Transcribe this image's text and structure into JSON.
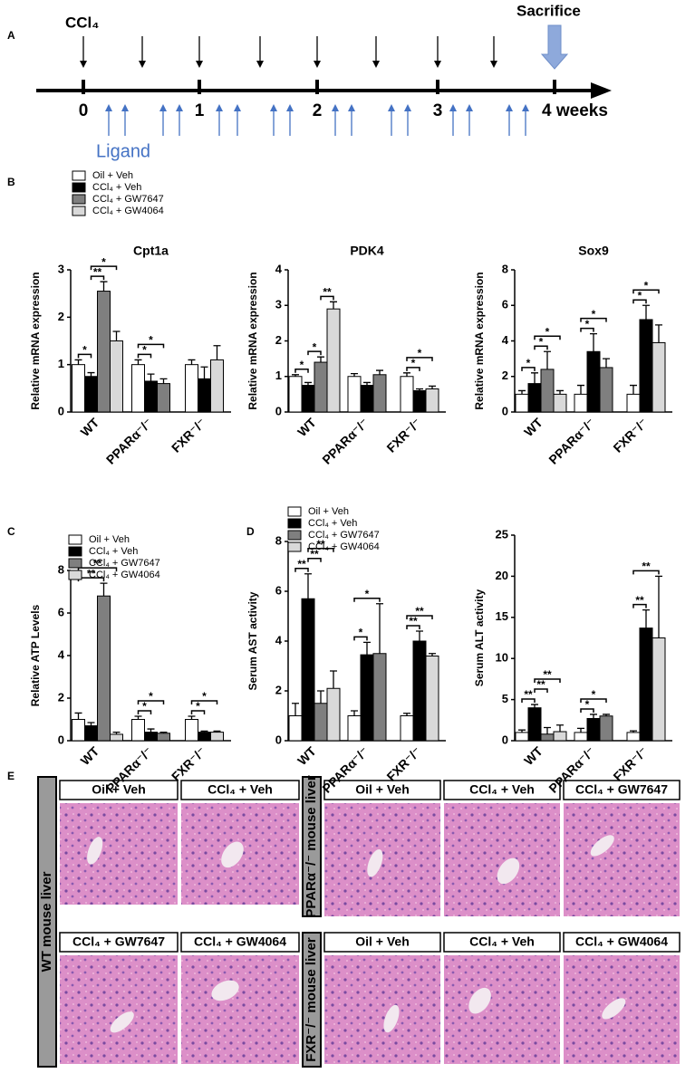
{
  "panel_labels": [
    "A",
    "B",
    "C",
    "D",
    "E"
  ],
  "timeline": {
    "start_label": "CCl₄",
    "end_label": "Sacrifice",
    "ticks": [
      "0",
      "1",
      "2",
      "3",
      "4 weeks"
    ],
    "ligand_label": "Ligand"
  },
  "histology": {
    "groups": [
      {
        "label": "WT mouse liver",
        "panels": [
          "Oil + Veh",
          "CCl₄ + Veh",
          "CCl₄ + GW7647",
          "CCl₄ + GW4064"
        ]
      },
      {
        "label": "PPARα⁻/⁻ mouse liver",
        "panels": [
          "Oil + Veh",
          "CCl₄ + Veh",
          "CCl₄ + GW7647"
        ]
      },
      {
        "label": "FXR⁻/⁻ mouse liver",
        "panels": [
          "Oil + Veh",
          "CCl₄ + Veh",
          "CCl₄ + GW4064"
        ]
      }
    ]
  },
  "chart_data": [
    {
      "type": "bar",
      "title": "Cpt1a",
      "y_label": "Relative mRNA expression",
      "categories": [
        "WT",
        "PPARα⁻/⁻",
        "FXR⁻/⁻"
      ],
      "series": [
        {
          "name": "Oil + Veh",
          "color": "#ffffff",
          "values": [
            1.0,
            1.0,
            1.0
          ],
          "errors": [
            0.1,
            0.1,
            0.1
          ]
        },
        {
          "name": "CCl₄ + Veh",
          "color": "#000000",
          "values": [
            0.75,
            0.65,
            0.7
          ],
          "errors": [
            0.08,
            0.15,
            0.25
          ]
        },
        {
          "name": "CCl₄ + GW7647",
          "color": "#7f7f7f",
          "values": [
            2.55,
            0.6,
            null
          ],
          "errors": [
            0.2,
            0.1,
            null
          ]
        },
        {
          "name": "CCl₄ + GW4064",
          "color": "#d9d9d9",
          "values": [
            1.5,
            null,
            1.1
          ],
          "errors": [
            0.2,
            null,
            0.3
          ]
        }
      ],
      "ylim": [
        0,
        3
      ],
      "yticks": [
        0,
        1,
        2,
        3
      ],
      "annotations": [
        "*",
        "**",
        "*",
        "*",
        "*"
      ]
    },
    {
      "type": "bar",
      "title": "PDK4",
      "y_label": "Relative mRNA expression",
      "categories": [
        "WT",
        "PPARα⁻/⁻",
        "FXR⁻/⁻"
      ],
      "series": [
        {
          "color": "#ffffff",
          "values": [
            1.0,
            1.0,
            1.0
          ],
          "errors": [
            0.05,
            0.08,
            0.1
          ]
        },
        {
          "color": "#000000",
          "values": [
            0.75,
            0.75,
            0.6
          ],
          "errors": [
            0.08,
            0.08,
            0.05
          ]
        },
        {
          "color": "#7f7f7f",
          "values": [
            1.4,
            1.05,
            null
          ],
          "errors": [
            0.15,
            0.12,
            null
          ]
        },
        {
          "color": "#d9d9d9",
          "values": [
            2.9,
            null,
            0.65
          ],
          "errors": [
            0.2,
            null,
            0.08
          ]
        }
      ],
      "ylim": [
        0,
        4
      ],
      "yticks": [
        0,
        1,
        2,
        3,
        4
      ],
      "annotations": [
        "*",
        "*",
        "**",
        "*",
        "*"
      ]
    },
    {
      "type": "bar",
      "title": "Sox9",
      "y_label": "Relative mRNA expression",
      "categories": [
        "WT",
        "PPARα⁻/⁻",
        "FXR⁻/⁻"
      ],
      "series": [
        {
          "color": "#ffffff",
          "values": [
            1.0,
            1.0,
            1.0
          ],
          "errors": [
            0.2,
            0.5,
            0.5
          ]
        },
        {
          "color": "#000000",
          "values": [
            1.6,
            3.4,
            5.2
          ],
          "errors": [
            0.6,
            1.0,
            0.8
          ]
        },
        {
          "color": "#7f7f7f",
          "values": [
            2.4,
            2.5,
            null
          ],
          "errors": [
            1.0,
            0.5,
            null
          ]
        },
        {
          "color": "#d9d9d9",
          "values": [
            1.0,
            null,
            3.9
          ],
          "errors": [
            0.2,
            null,
            1.0
          ]
        }
      ],
      "ylim": [
        0,
        8
      ],
      "yticks": [
        0,
        2,
        4,
        6,
        8
      ],
      "annotations": [
        "*",
        "*",
        "*",
        "*",
        "*",
        "*",
        "*"
      ]
    },
    {
      "type": "bar",
      "y_label": "Relative ATP Levels",
      "categories": [
        "WT",
        "PPARα⁻/⁻",
        "FXR⁻/⁻"
      ],
      "series": [
        {
          "name": "Oil + Veh",
          "color": "#ffffff",
          "values": [
            1.0,
            1.0,
            1.0
          ],
          "errors": [
            0.3,
            0.15,
            0.15
          ]
        },
        {
          "name": "CCl₄ + Veh",
          "color": "#000000",
          "values": [
            0.7,
            0.4,
            0.4
          ],
          "errors": [
            0.15,
            0.15,
            0.05
          ]
        },
        {
          "name": "CCl₄ + GW7647",
          "color": "#7f7f7f",
          "values": [
            6.8,
            0.35,
            null
          ],
          "errors": [
            0.6,
            0.05,
            null
          ]
        },
        {
          "name": "CCl₄ + GW4064",
          "color": "#d9d9d9",
          "values": [
            0.3,
            null,
            0.4
          ],
          "errors": [
            0.1,
            null,
            0.05
          ]
        }
      ],
      "ylim": [
        0,
        8
      ],
      "yticks": [
        0,
        2,
        4,
        6,
        8
      ],
      "annotations": [
        "**",
        "**",
        "*",
        "*",
        "*",
        "*"
      ]
    },
    {
      "type": "bar",
      "y_label": "Serum AST activity",
      "categories": [
        "WT",
        "PPARα⁻/⁻",
        "FXR⁻/⁻"
      ],
      "series": [
        {
          "name": "Oil + Veh",
          "color": "#ffffff",
          "values": [
            1.0,
            1.0,
            1.0
          ],
          "errors": [
            0.5,
            0.2,
            0.1
          ]
        },
        {
          "name": "CCl₄ + Veh",
          "color": "#000000",
          "values": [
            5.7,
            3.45,
            4.0
          ],
          "errors": [
            1.0,
            0.5,
            0.4
          ]
        },
        {
          "name": "CCl₄ + GW7647",
          "color": "#7f7f7f",
          "values": [
            1.5,
            3.5,
            null
          ],
          "errors": [
            0.5,
            2.0,
            null
          ]
        },
        {
          "name": "CCl₄ + GW4064",
          "color": "#d9d9d9",
          "values": [
            2.1,
            null,
            3.4
          ],
          "errors": [
            0.7,
            null,
            0.1
          ]
        }
      ],
      "ylim": [
        0,
        8
      ],
      "yticks": [
        0,
        2,
        4,
        6,
        8
      ],
      "annotations": [
        "**",
        "**",
        "**",
        "*",
        "*",
        "**",
        "**"
      ]
    },
    {
      "type": "bar",
      "y_label": "Serum ALT activity",
      "categories": [
        "WT",
        "PPARα⁻/⁻",
        "FXR⁻/⁻"
      ],
      "series": [
        {
          "color": "#ffffff",
          "values": [
            1.0,
            1.0,
            1.0
          ],
          "errors": [
            0.3,
            0.5,
            0.2
          ]
        },
        {
          "color": "#000000",
          "values": [
            4.0,
            2.7,
            13.7
          ],
          "errors": [
            0.4,
            0.5,
            2.2
          ]
        },
        {
          "color": "#7f7f7f",
          "values": [
            0.8,
            3.0,
            null
          ],
          "errors": [
            0.8,
            0.2,
            null
          ]
        },
        {
          "color": "#d9d9d9",
          "values": [
            1.1,
            null,
            12.5
          ],
          "errors": [
            0.8,
            null,
            7.5
          ]
        }
      ],
      "ylim": [
        0,
        25
      ],
      "yticks": [
        0,
        5,
        10,
        15,
        20,
        25
      ],
      "annotations": [
        "**",
        "**",
        "**",
        "*",
        "*",
        "**",
        "**"
      ]
    }
  ]
}
